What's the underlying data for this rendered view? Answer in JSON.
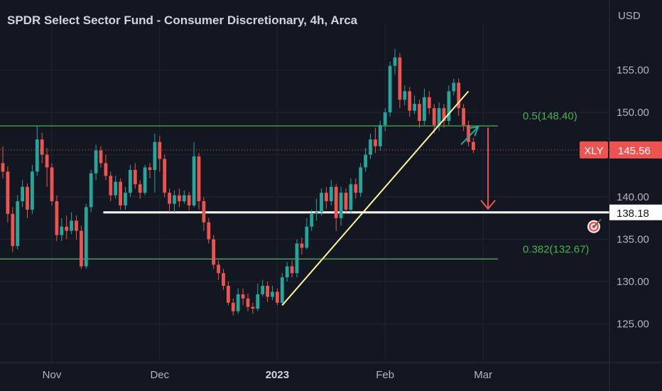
{
  "header": {
    "title": "SPDR Select Sector Fund - Consumer Discretionary, 4h, Arca",
    "currency": "USD"
  },
  "colors": {
    "background": "#131722",
    "grid": "#1f2430",
    "up": "#26a69a",
    "down": "#ef5350",
    "axis_text": "#b2b5be",
    "fib_line": "#4caf50",
    "support": "#ffffff",
    "trendline": "#fff59d",
    "price_line": "#ef5350"
  },
  "chart_data": {
    "type": "candlestick",
    "symbol": "XLY",
    "last_price": 145.56,
    "last_price_label": "145.56",
    "ylim": [
      121,
      158
    ],
    "y_ticks": [
      125,
      130,
      135,
      140,
      145,
      150,
      155
    ],
    "y_tick_labels": [
      "125.00",
      "130.00",
      "135.00",
      "140.00",
      "145.00",
      "150.00",
      "155.00"
    ],
    "x_ticks": [
      {
        "label": "Nov",
        "bold": false,
        "index": 10
      },
      {
        "label": "Dec",
        "bold": false,
        "index": 32
      },
      {
        "label": "2023",
        "bold": true,
        "index": 56
      },
      {
        "label": "Feb",
        "bold": false,
        "index": 78
      },
      {
        "label": "Mar",
        "bold": false,
        "index": 98
      }
    ],
    "levels": [
      {
        "name": "fib-0.5",
        "value": 148.4,
        "label": "0.5(148.40)",
        "color": "#4caf50"
      },
      {
        "name": "fib-0.382",
        "value": 132.67,
        "label": "0.382(132.67)",
        "color": "#4caf50"
      },
      {
        "name": "support",
        "value": 138.18,
        "label": "138.18",
        "color": "#ffffff"
      }
    ],
    "trendline": {
      "from": {
        "index": 57,
        "price": 127.2
      },
      "to": {
        "index": 95,
        "price": 152.5
      }
    },
    "projection": {
      "up_arrow": {
        "from": {
          "index": 93.5,
          "price": 146.2
        },
        "to": {
          "index": 97,
          "price": 148.3
        }
      },
      "down_arrow": {
        "from": {
          "index": 99,
          "price": 148.2
        },
        "to": {
          "index": 99,
          "price": 138.6
        }
      }
    },
    "candles": [
      [
        144.0,
        143.0,
        146.0,
        142.2
      ],
      [
        143.0,
        138.0,
        143.6,
        137.0
      ],
      [
        138.0,
        134.2,
        138.8,
        133.5
      ],
      [
        134.2,
        139.5,
        140.2,
        133.8
      ],
      [
        139.5,
        141.2,
        142.0,
        138.8
      ],
      [
        141.2,
        138.5,
        141.6,
        137.5
      ],
      [
        138.5,
        143.0,
        143.8,
        138.0
      ],
      [
        143.0,
        146.8,
        148.4,
        142.5
      ],
      [
        146.8,
        145.0,
        147.6,
        144.0
      ],
      [
        145.0,
        143.5,
        145.8,
        141.2
      ],
      [
        143.5,
        139.5,
        144.0,
        139.0
      ],
      [
        139.5,
        135.5,
        140.2,
        134.8
      ],
      [
        135.5,
        136.5,
        137.5,
        134.8
      ],
      [
        136.5,
        136.0,
        137.8,
        135.0
      ],
      [
        136.0,
        137.2,
        138.2,
        135.6
      ],
      [
        137.2,
        136.0,
        137.8,
        135.0
      ],
      [
        136.0,
        131.8,
        136.6,
        131.5
      ],
      [
        131.8,
        138.8,
        139.2,
        131.5
      ],
      [
        138.8,
        142.8,
        143.2,
        138.2
      ],
      [
        142.8,
        145.5,
        146.2,
        142.0
      ],
      [
        145.5,
        144.0,
        146.0,
        143.5
      ],
      [
        144.0,
        142.5,
        145.0,
        142.0
      ],
      [
        142.5,
        140.2,
        143.0,
        139.5
      ],
      [
        140.2,
        141.8,
        142.5,
        139.8
      ],
      [
        141.8,
        139.0,
        142.2,
        138.5
      ],
      [
        139.0,
        140.5,
        141.2,
        138.5
      ],
      [
        140.5,
        143.2,
        143.8,
        140.0
      ],
      [
        143.2,
        141.5,
        144.0,
        141.0
      ],
      [
        141.5,
        140.5,
        142.0,
        139.8
      ],
      [
        140.5,
        143.5,
        143.8,
        140.2
      ],
      [
        143.5,
        143.2,
        144.0,
        142.2
      ],
      [
        143.2,
        146.5,
        147.5,
        140.5
      ],
      [
        146.5,
        144.5,
        147.2,
        143.0
      ],
      [
        144.5,
        140.5,
        145.0,
        140.0
      ],
      [
        140.5,
        139.2,
        141.0,
        138.2
      ],
      [
        139.2,
        140.2,
        140.8,
        138.2
      ],
      [
        140.2,
        139.5,
        141.0,
        138.8
      ],
      [
        139.5,
        140.2,
        140.8,
        139.2
      ],
      [
        140.2,
        139.0,
        140.6,
        138.4
      ],
      [
        139.0,
        144.8,
        146.5,
        138.8
      ],
      [
        144.8,
        139.5,
        145.2,
        138.5
      ],
      [
        139.5,
        137.0,
        140.0,
        136.0
      ],
      [
        137.0,
        135.0,
        137.5,
        134.5
      ],
      [
        135.0,
        132.0,
        135.5,
        131.5
      ],
      [
        132.0,
        131.0,
        132.5,
        130.2
      ],
      [
        131.0,
        129.5,
        131.5,
        129.0
      ],
      [
        129.5,
        127.5,
        130.0,
        127.2
      ],
      [
        127.5,
        126.5,
        128.0,
        126.0
      ],
      [
        126.5,
        128.5,
        129.2,
        126.2
      ],
      [
        128.5,
        128.0,
        129.2,
        127.2
      ],
      [
        128.0,
        127.0,
        128.6,
        126.5
      ],
      [
        127.0,
        126.8,
        127.5,
        126.2
      ],
      [
        126.8,
        128.5,
        129.8,
        126.5
      ],
      [
        128.5,
        129.5,
        130.2,
        128.2
      ],
      [
        129.5,
        128.2,
        130.0,
        127.6
      ],
      [
        128.2,
        128.8,
        129.5,
        127.8
      ],
      [
        128.8,
        127.5,
        129.2,
        127.2
      ],
      [
        127.5,
        130.5,
        131.0,
        127.2
      ],
      [
        130.5,
        131.8,
        132.3,
        130.0
      ],
      [
        131.8,
        131.0,
        132.5,
        130.5
      ],
      [
        131.0,
        134.5,
        135.0,
        130.5
      ],
      [
        134.5,
        134.0,
        135.2,
        133.2
      ],
      [
        134.0,
        136.5,
        137.5,
        133.8
      ],
      [
        136.5,
        138.0,
        138.5,
        136.0
      ],
      [
        138.0,
        138.2,
        139.8,
        137.2
      ],
      [
        138.2,
        140.5,
        141.0,
        137.8
      ],
      [
        140.5,
        139.5,
        141.2,
        138.6
      ],
      [
        139.5,
        141.2,
        142.0,
        139.0
      ],
      [
        141.2,
        137.5,
        141.5,
        136.0
      ],
      [
        137.5,
        140.5,
        141.2,
        136.6
      ],
      [
        140.5,
        138.5,
        141.0,
        138.0
      ],
      [
        138.5,
        141.5,
        142.2,
        138.0
      ],
      [
        141.5,
        140.5,
        142.2,
        139.8
      ],
      [
        140.5,
        143.5,
        144.0,
        140.0
      ],
      [
        143.5,
        145.0,
        145.8,
        143.0
      ],
      [
        145.0,
        146.8,
        147.5,
        144.5
      ],
      [
        146.8,
        146.0,
        148.2,
        145.2
      ],
      [
        146.0,
        148.5,
        149.0,
        145.5
      ],
      [
        148.5,
        150.0,
        150.5,
        147.8
      ],
      [
        150.0,
        155.5,
        156.0,
        149.5
      ],
      [
        155.5,
        156.5,
        157.5,
        154.5
      ],
      [
        156.5,
        151.5,
        157.0,
        150.5
      ],
      [
        151.5,
        152.5,
        153.2,
        150.8
      ],
      [
        152.5,
        150.2,
        153.0,
        149.5
      ],
      [
        150.2,
        151.0,
        152.0,
        149.8
      ],
      [
        151.0,
        149.0,
        151.5,
        148.2
      ],
      [
        149.0,
        151.8,
        152.8,
        148.5
      ],
      [
        151.8,
        150.5,
        152.5,
        149.8
      ],
      [
        150.5,
        148.5,
        151.0,
        147.5
      ],
      [
        148.5,
        150.5,
        151.2,
        147.8
      ],
      [
        150.5,
        149.0,
        151.0,
        148.2
      ],
      [
        149.0,
        152.5,
        153.2,
        148.5
      ],
      [
        152.5,
        153.5,
        154.0,
        152.0
      ],
      [
        153.5,
        150.5,
        154.0,
        149.6
      ],
      [
        150.5,
        148.5,
        151.0,
        147.8
      ],
      [
        148.5,
        146.5,
        149.0,
        146.0
      ],
      [
        146.5,
        145.56,
        147.0,
        145.2
      ]
    ]
  }
}
